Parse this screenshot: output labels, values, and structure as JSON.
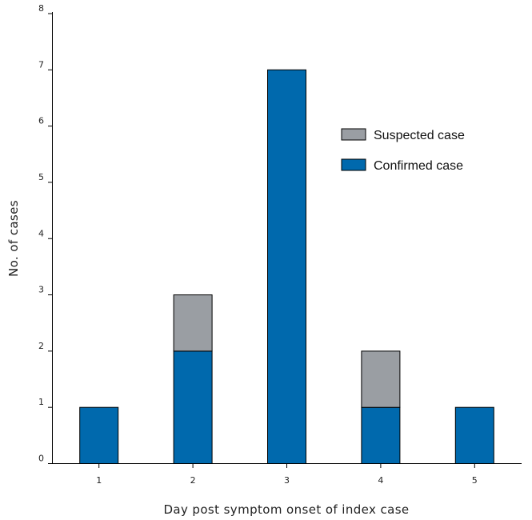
{
  "chart_data": {
    "type": "bar",
    "stacked": true,
    "title": "",
    "xlabel": "Day post symptom onset of index case",
    "ylabel": "No. of cases",
    "categories": [
      "1",
      "2",
      "3",
      "4",
      "5"
    ],
    "ylim": [
      0,
      8
    ],
    "yticks": [
      "0",
      "1",
      "2",
      "3",
      "4",
      "5",
      "6",
      "7",
      "8"
    ],
    "series": [
      {
        "name": "Confirmed case",
        "color": "#0069ad",
        "values": [
          1,
          2,
          7,
          1,
          1
        ]
      },
      {
        "name": "Suspected case",
        "color": "#9a9ea3",
        "values": [
          0,
          1,
          0,
          1,
          0
        ]
      }
    ],
    "legend": {
      "position": "top-right",
      "order": [
        "Suspected case",
        "Confirmed case"
      ]
    },
    "grid": false
  }
}
